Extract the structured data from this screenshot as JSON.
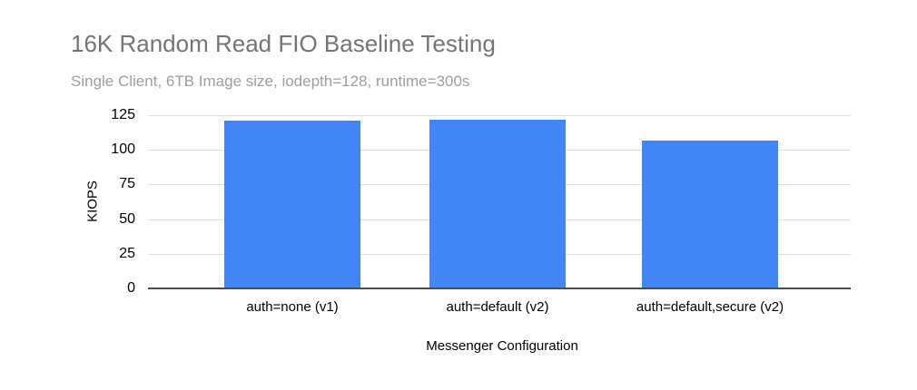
{
  "chart_data": {
    "type": "bar",
    "title": "16K Random Read FIO Baseline Testing",
    "subtitle": "Single Client, 6TB Image size, iodepth=128, runtime=300s",
    "xlabel": "Messenger Configuration",
    "ylabel": "KIOPS",
    "categories": [
      "auth=none (v1)",
      "auth=default (v2)",
      "auth=default,secure (v2)"
    ],
    "values": [
      121,
      122,
      107
    ],
    "ylim": [
      0,
      125
    ],
    "yticks": [
      0,
      25,
      50,
      75,
      100,
      125
    ],
    "grid": true,
    "legend": "none",
    "bar_color": "#4285f4"
  },
  "style": {
    "background": "#ffffff",
    "title_color": "#757575",
    "subtitle_color": "#9e9e9e",
    "axis_text_color": "#000000",
    "gridline_color": "#e0e0e0",
    "baseline_color": "#4d4d4d"
  }
}
